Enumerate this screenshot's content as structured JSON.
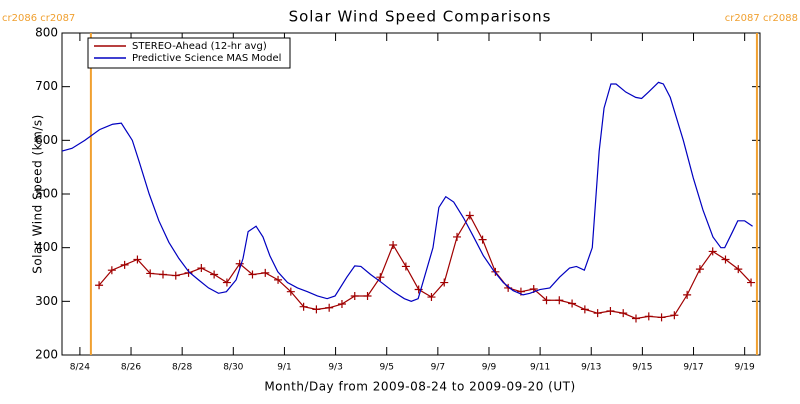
{
  "chart_data": {
    "type": "line",
    "title": "Solar Wind Speed Comparisons",
    "xlabel": "Month/Day from 2009-08-24 to 2009-09-20 (UT)",
    "ylabel": "Solar Wind Speed (km/s)",
    "xlim": [
      -0.7,
      26.6
    ],
    "ylim": [
      200,
      800
    ],
    "yticks": [
      200,
      300,
      400,
      500,
      600,
      700,
      800
    ],
    "xticks": [
      {
        "value": 0,
        "label": "8/24"
      },
      {
        "value": 2,
        "label": "8/26"
      },
      {
        "value": 4,
        "label": "8/28"
      },
      {
        "value": 6,
        "label": "8/30"
      },
      {
        "value": 8,
        "label": "9/1"
      },
      {
        "value": 10,
        "label": "9/3"
      },
      {
        "value": 12,
        "label": "9/5"
      },
      {
        "value": 14,
        "label": "9/7"
      },
      {
        "value": 16,
        "label": "9/9"
      },
      {
        "value": 18,
        "label": "9/11"
      },
      {
        "value": 20,
        "label": "9/13"
      },
      {
        "value": 22,
        "label": "9/15"
      },
      {
        "value": 24,
        "label": "9/17"
      },
      {
        "value": 26,
        "label": "9/19"
      }
    ],
    "legend": "upper left",
    "boundaries": [
      {
        "x": 0.43,
        "label": "cr2086 cr2087",
        "color": "#f0a030"
      },
      {
        "x": 26.48,
        "label": "cr2087 cr2088",
        "color": "#f0a030"
      }
    ],
    "series": [
      {
        "name": "STEREO-Ahead (12-hr avg)",
        "color": "#a00000",
        "markers": true,
        "x": [
          0.75,
          1.25,
          1.75,
          2.25,
          2.75,
          3.25,
          3.75,
          4.25,
          4.75,
          5.25,
          5.75,
          6.25,
          6.75,
          7.25,
          7.75,
          8.25,
          8.75,
          9.25,
          9.75,
          10.25,
          10.75,
          11.25,
          11.75,
          12.25,
          12.75,
          13.25,
          13.75,
          14.25,
          14.75,
          15.25,
          15.75,
          16.25,
          16.75,
          17.25,
          17.75,
          18.25,
          18.75,
          19.25,
          19.75,
          20.25,
          20.75,
          21.25,
          21.75,
          22.25,
          22.75,
          23.25,
          23.75,
          24.25,
          24.75,
          25.25,
          25.75,
          26.25
        ],
        "values": [
          330,
          358,
          368,
          378,
          352,
          350,
          348,
          353,
          362,
          350,
          335,
          370,
          350,
          353,
          340,
          318,
          290,
          285,
          288,
          295,
          310,
          310,
          345,
          405,
          365,
          322,
          308,
          335,
          420,
          460,
          415,
          355,
          325,
          318,
          323,
          302,
          302,
          296,
          285,
          278,
          282,
          278,
          268,
          272,
          270,
          274,
          312,
          360,
          393,
          378,
          360,
          335
        ]
      },
      {
        "name": "Predictive Science MAS Model",
        "color": "#0000c0",
        "markers": false,
        "x": [
          -0.7,
          -0.31,
          0.19,
          0.77,
          1.28,
          1.62,
          2.05,
          2.32,
          2.71,
          3.09,
          3.48,
          3.87,
          4.26,
          4.64,
          5.03,
          5.42,
          5.73,
          6.11,
          6.38,
          6.58,
          6.89,
          7.16,
          7.43,
          7.74,
          8.12,
          8.51,
          8.9,
          9.29,
          9.67,
          9.98,
          10.44,
          10.75,
          10.99,
          11.37,
          11.8,
          12.26,
          12.69,
          12.96,
          13.23,
          13.81,
          14.04,
          14.31,
          14.62,
          15.01,
          15.4,
          15.78,
          16.17,
          16.56,
          16.94,
          17.33,
          17.6,
          17.99,
          18.38,
          18.76,
          19.15,
          19.42,
          19.73,
          20.04,
          20.31,
          20.5,
          20.77,
          20.97,
          21.35,
          21.74,
          21.97,
          22.24,
          22.63,
          22.82,
          23.09,
          23.6,
          23.99,
          24.37,
          24.76,
          25.07,
          25.22,
          25.53,
          25.73,
          26.0,
          26.31
        ],
        "values": [
          580,
          585,
          600,
          620,
          630,
          632,
          600,
          560,
          500,
          450,
          410,
          380,
          355,
          340,
          325,
          315,
          318,
          340,
          380,
          430,
          440,
          420,
          385,
          355,
          335,
          325,
          318,
          310,
          305,
          310,
          345,
          366,
          365,
          350,
          335,
          318,
          305,
          300,
          305,
          400,
          475,
          495,
          485,
          455,
          420,
          385,
          358,
          335,
          320,
          312,
          315,
          322,
          325,
          345,
          362,
          365,
          358,
          400,
          580,
          660,
          705,
          705,
          690,
          680,
          678,
          690,
          708,
          705,
          680,
          600,
          530,
          470,
          420,
          400,
          400,
          430,
          450,
          450,
          440
        ]
      }
    ]
  }
}
